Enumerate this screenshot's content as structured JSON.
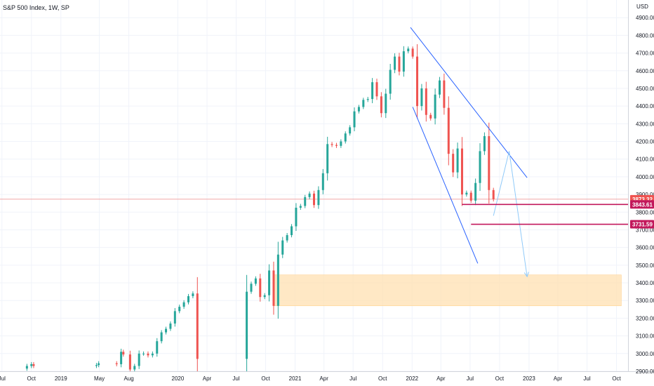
{
  "header": {
    "title": "S&P 500 Index, 1W, SP"
  },
  "chart_data": {
    "type": "candlestick",
    "title": "S&P 500 Index, 1W, SP",
    "currency": "USD",
    "ylim": [
      2900,
      5000
    ],
    "y_ticks": [
      2900,
      3000,
      3100,
      3200,
      3300,
      3400,
      3500,
      3600,
      3700,
      3800,
      3900,
      4000,
      4100,
      4200,
      4300,
      4400,
      4500,
      4600,
      4700,
      4800,
      4900
    ],
    "xlim": [
      "2018-06-25",
      "2023-11-06"
    ],
    "x_ticks": [
      {
        "date": "2018-07-01",
        "label": "Jul"
      },
      {
        "date": "2018-10-01",
        "label": "Oct"
      },
      {
        "date": "2019-01-01",
        "label": "2019"
      },
      {
        "date": "2019-05-01",
        "label": "May"
      },
      {
        "date": "2019-08-01",
        "label": "Aug"
      },
      {
        "date": "2020-01-01",
        "label": "2020"
      },
      {
        "date": "2020-04-01",
        "label": "Apr"
      },
      {
        "date": "2020-07-01",
        "label": "Jul"
      },
      {
        "date": "2020-10-01",
        "label": "Oct"
      },
      {
        "date": "2021-01-01",
        "label": "2021"
      },
      {
        "date": "2021-04-01",
        "label": "Apr"
      },
      {
        "date": "2021-07-01",
        "label": "Jul"
      },
      {
        "date": "2021-10-01",
        "label": "Oct"
      },
      {
        "date": "2022-01-01",
        "label": "2022"
      },
      {
        "date": "2022-04-01",
        "label": "Apr"
      },
      {
        "date": "2022-07-01",
        "label": "Jul"
      },
      {
        "date": "2022-10-01",
        "label": "Oct"
      },
      {
        "date": "2023-01-01",
        "label": "2023"
      },
      {
        "date": "2023-04-01",
        "label": "Apr"
      },
      {
        "date": "2023-07-01",
        "label": "Jul"
      },
      {
        "date": "2023-10-01",
        "label": "Oct"
      }
    ],
    "grid": true,
    "colors": {
      "up": "#26a69a",
      "down": "#ef5350",
      "trendline": "#2962ff",
      "level": "#c2185b",
      "zone": "#ffe0b2",
      "current_price_line": "#ef9a9a"
    },
    "series": [
      {
        "date": "2018-09-17",
        "close": 2930
      },
      {
        "date": "2018-10-01",
        "close": 2940
      },
      {
        "date": "2018-10-08",
        "close": 2930
      },
      {
        "date": "2019-04-22",
        "close": 2935
      },
      {
        "date": "2019-04-29",
        "close": 2945
      },
      {
        "date": "2019-06-24",
        "close": 2940
      },
      {
        "date": "2019-07-08",
        "close": 3010
      },
      {
        "date": "2019-07-15",
        "close": 2995
      },
      {
        "date": "2019-08-05",
        "close": 2910
      },
      {
        "date": "2019-08-19",
        "close": 2930
      },
      {
        "date": "2019-09-02",
        "close": 3000
      },
      {
        "date": "2019-09-16",
        "close": 3000
      },
      {
        "date": "2019-09-30",
        "close": 2990
      },
      {
        "date": "2019-10-14",
        "close": 3000
      },
      {
        "date": "2019-10-28",
        "close": 3070
      },
      {
        "date": "2019-11-11",
        "close": 3120
      },
      {
        "date": "2019-11-25",
        "close": 3140
      },
      {
        "date": "2019-12-09",
        "close": 3170
      },
      {
        "date": "2019-12-23",
        "close": 3240
      },
      {
        "date": "2020-01-06",
        "close": 3265
      },
      {
        "date": "2020-01-20",
        "close": 3290
      },
      {
        "date": "2020-02-03",
        "close": 3325
      },
      {
        "date": "2020-02-17",
        "close": 3340
      },
      {
        "date": "2020-03-02",
        "close": 2970
      },
      {
        "date": "2020-08-03",
        "close": 3350
      },
      {
        "date": "2020-08-17",
        "close": 3395
      },
      {
        "date": "2020-08-31",
        "close": 3425
      },
      {
        "date": "2020-09-14",
        "close": 3320
      },
      {
        "date": "2020-09-28",
        "close": 3330
      },
      {
        "date": "2020-10-12",
        "close": 3470
      },
      {
        "date": "2020-10-26",
        "close": 3270
      },
      {
        "date": "2020-11-09",
        "close": 3560
      },
      {
        "date": "2020-11-23",
        "close": 3640
      },
      {
        "date": "2020-12-07",
        "close": 3670
      },
      {
        "date": "2020-12-21",
        "close": 3720
      },
      {
        "date": "2021-01-04",
        "close": 3825
      },
      {
        "date": "2021-01-18",
        "close": 3835
      },
      {
        "date": "2021-02-01",
        "close": 3885
      },
      {
        "date": "2021-02-15",
        "close": 3905
      },
      {
        "date": "2021-03-01",
        "close": 3840
      },
      {
        "date": "2021-03-15",
        "close": 3925
      },
      {
        "date": "2021-03-29",
        "close": 4020
      },
      {
        "date": "2021-04-12",
        "close": 4185
      },
      {
        "date": "2021-04-26",
        "close": 4180
      },
      {
        "date": "2021-05-10",
        "close": 4175
      },
      {
        "date": "2021-05-24",
        "close": 4200
      },
      {
        "date": "2021-06-07",
        "close": 4245
      },
      {
        "date": "2021-06-21",
        "close": 4280
      },
      {
        "date": "2021-07-05",
        "close": 4370
      },
      {
        "date": "2021-07-19",
        "close": 4395
      },
      {
        "date": "2021-08-02",
        "close": 4435
      },
      {
        "date": "2021-08-16",
        "close": 4440
      },
      {
        "date": "2021-08-30",
        "close": 4535
      },
      {
        "date": "2021-09-13",
        "close": 4455
      },
      {
        "date": "2021-09-27",
        "close": 4360
      },
      {
        "date": "2021-10-11",
        "close": 4470
      },
      {
        "date": "2021-10-25",
        "close": 4605
      },
      {
        "date": "2021-11-08",
        "close": 4680
      },
      {
        "date": "2021-11-22",
        "close": 4595
      },
      {
        "date": "2021-12-06",
        "close": 4710
      },
      {
        "date": "2021-12-20",
        "close": 4725
      },
      {
        "date": "2022-01-03",
        "close": 4680
      },
      {
        "date": "2022-01-17",
        "close": 4400
      },
      {
        "date": "2022-01-31",
        "close": 4500
      },
      {
        "date": "2022-02-14",
        "close": 4350
      },
      {
        "date": "2022-02-28",
        "close": 4330
      },
      {
        "date": "2022-03-14",
        "close": 4465
      },
      {
        "date": "2022-03-28",
        "close": 4545
      },
      {
        "date": "2022-04-11",
        "close": 4390
      },
      {
        "date": "2022-04-25",
        "close": 4130
      },
      {
        "date": "2022-05-09",
        "close": 4025
      },
      {
        "date": "2022-05-23",
        "close": 4160
      },
      {
        "date": "2022-06-06",
        "close": 3900
      },
      {
        "date": "2022-06-20",
        "close": 3910
      },
      {
        "date": "2022-07-04",
        "close": 3865
      },
      {
        "date": "2022-07-18",
        "close": 3965
      },
      {
        "date": "2022-08-01",
        "close": 4145
      },
      {
        "date": "2022-08-15",
        "close": 4230
      },
      {
        "date": "2022-08-29",
        "close": 3925
      },
      {
        "date": "2022-09-12",
        "close": 3873.32
      }
    ],
    "last_price": 3873.32,
    "price_levels": [
      {
        "value": 3843.61,
        "label": "3843.61"
      },
      {
        "value": 3731.59,
        "label": "3731.59"
      }
    ],
    "current_price_label": "3873.32",
    "demand_zone": {
      "from": 3270,
      "to": 3445,
      "start": "2020-10-26",
      "end": "2023-10-16"
    },
    "trendlines": [
      {
        "start": {
          "date": "2021-12-27",
          "value": 4845
        },
        "end": {
          "date": "2022-12-26",
          "value": 3995
        }
      },
      {
        "start": {
          "date": "2022-01-03",
          "value": 4395
        },
        "end": {
          "date": "2022-07-25",
          "value": 3510
        }
      }
    ],
    "projection": [
      {
        "date": "2022-09-12",
        "value": 3780
      },
      {
        "date": "2022-10-31",
        "value": 4145
      },
      {
        "date": "2022-12-26",
        "value": 3435
      }
    ]
  }
}
